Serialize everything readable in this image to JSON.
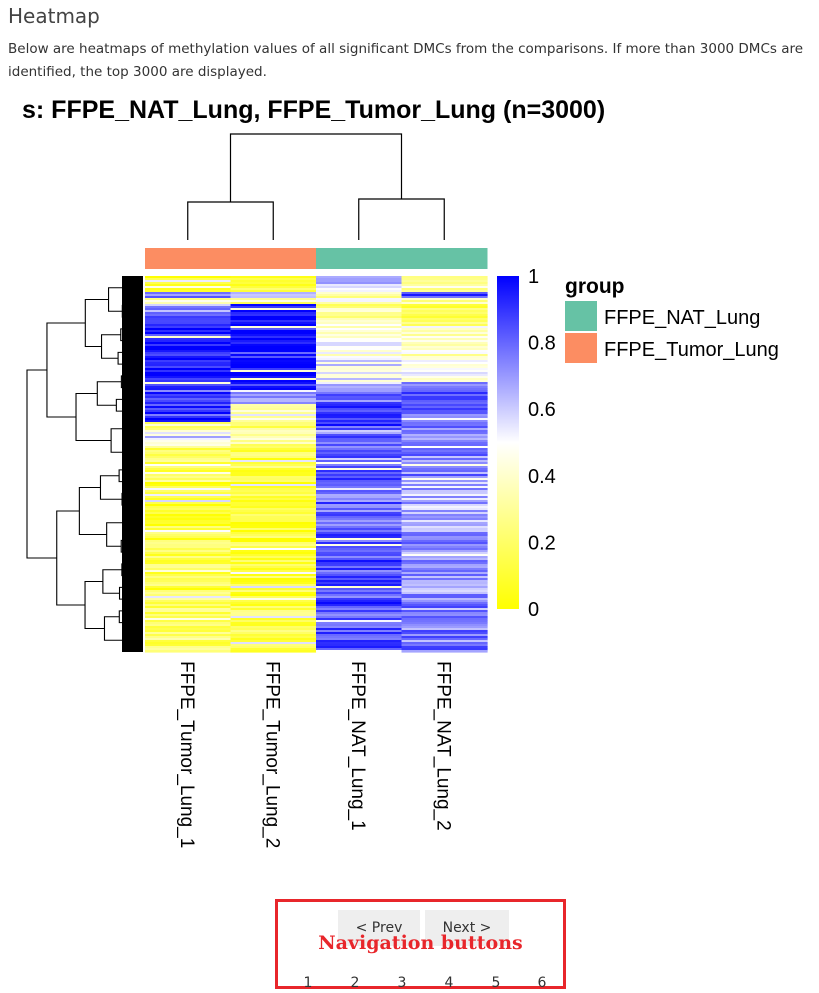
{
  "section": {
    "title": "Heatmap",
    "description": "Below are heatmaps of methylation values of all significant DMCs from the comparisons. If more than 3000 DMCs are identified, the top 3000 are displayed."
  },
  "chart_data": {
    "type": "heatmap",
    "title": "s: FFPE_NAT_Lung, FFPE_Tumor_Lung (n=3000)",
    "columns": [
      "FFPE_Tumor_Lung_1",
      "FFPE_Tumor_Lung_2",
      "FFPE_NAT_Lung_1",
      "FFPE_NAT_Lung_2"
    ],
    "column_groups": [
      "FFPE_Tumor_Lung",
      "FFPE_Tumor_Lung",
      "FFPE_NAT_Lung",
      "FFPE_NAT_Lung"
    ],
    "n_rows": 3000,
    "legend_group": {
      "title": "group",
      "entries": [
        {
          "label": "FFPE_NAT_Lung",
          "color": "#66c2a5"
        },
        {
          "label": "FFPE_Tumor_Lung",
          "color": "#fc8d62"
        }
      ]
    },
    "color_scale": {
      "min": 0,
      "max": 1,
      "colors": [
        "#ffff00",
        "#ffffff",
        "#0000ff"
      ],
      "ticks": [
        "0",
        "0.2",
        "0.4",
        "0.6",
        "0.8",
        "1"
      ]
    },
    "row_blocks": [
      {
        "rows": 120,
        "values": [
          0.1,
          0.1,
          0.6,
          0.3
        ]
      },
      {
        "rows": 60,
        "values": [
          0.75,
          0.65,
          0.35,
          0.85
        ]
      },
      {
        "rows": 50,
        "values": [
          0.35,
          0.25,
          0.4,
          0.3
        ]
      },
      {
        "rows": 100,
        "values": [
          0.75,
          0.95,
          0.3,
          0.2
        ]
      },
      {
        "rows": 80,
        "values": [
          0.85,
          0.9,
          0.45,
          0.3
        ]
      },
      {
        "rows": 250,
        "values": [
          0.93,
          0.93,
          0.45,
          0.4
        ]
      },
      {
        "rows": 180,
        "values": [
          0.95,
          0.95,
          0.55,
          0.5
        ]
      },
      {
        "rows": 80,
        "values": [
          0.85,
          0.9,
          0.6,
          0.7
        ]
      },
      {
        "rows": 100,
        "values": [
          0.9,
          0.75,
          0.8,
          0.85
        ]
      },
      {
        "rows": 150,
        "values": [
          0.88,
          0.42,
          0.9,
          0.78
        ]
      },
      {
        "rows": 80,
        "values": [
          0.3,
          0.25,
          0.85,
          0.8
        ]
      },
      {
        "rows": 100,
        "values": [
          0.55,
          0.3,
          0.8,
          0.75
        ]
      },
      {
        "rows": 300,
        "values": [
          0.2,
          0.15,
          0.85,
          0.75
        ]
      },
      {
        "rows": 400,
        "values": [
          0.12,
          0.1,
          0.8,
          0.65
        ]
      },
      {
        "rows": 500,
        "values": [
          0.15,
          0.12,
          0.85,
          0.7
        ]
      },
      {
        "rows": 450,
        "values": [
          0.2,
          0.15,
          0.85,
          0.75
        ]
      }
    ]
  },
  "navigation": {
    "prev_label": "< Prev",
    "next_label": "Next >",
    "annotation": "Navigation buttons",
    "pages": [
      "1",
      "2",
      "3",
      "4",
      "5",
      "6"
    ]
  }
}
